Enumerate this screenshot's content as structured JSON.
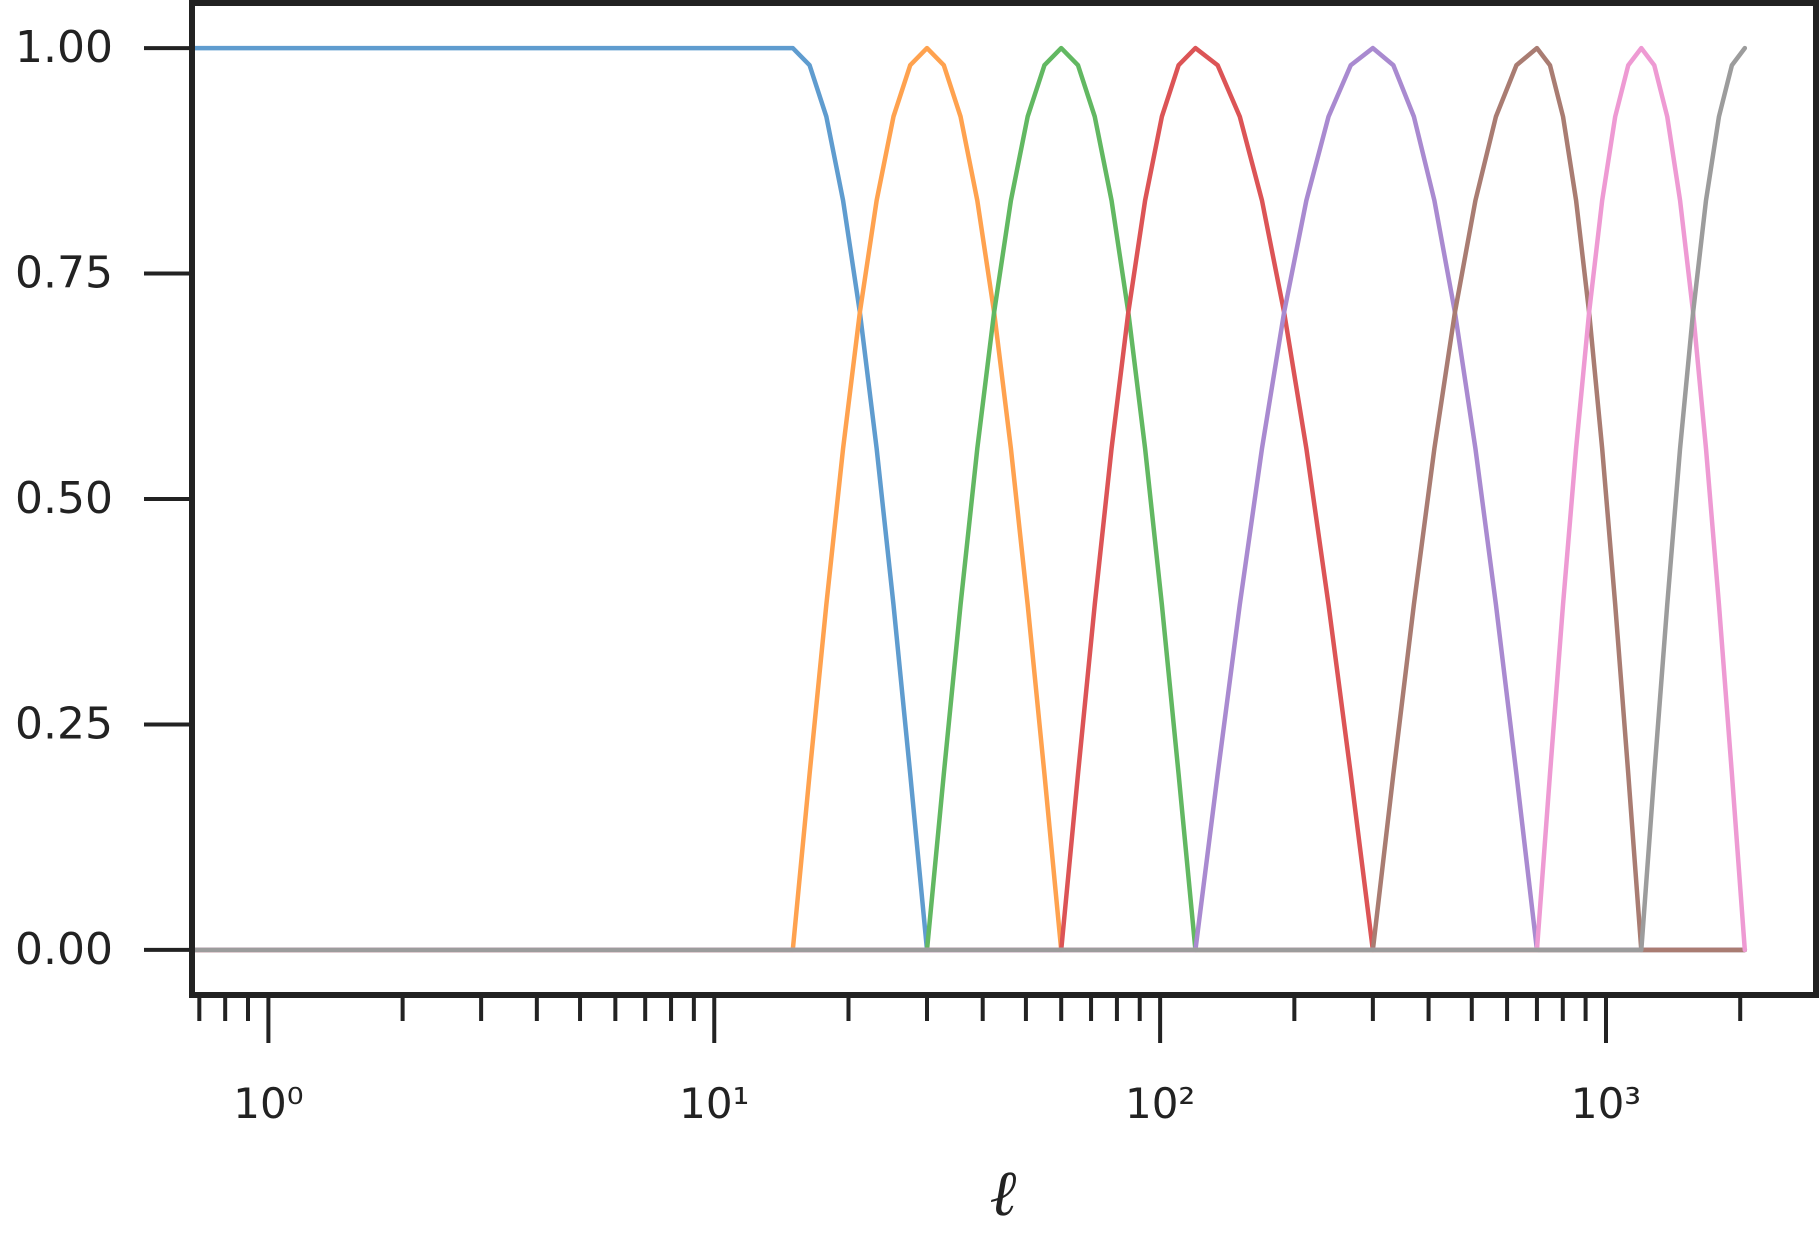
{
  "chart_data": {
    "type": "line",
    "x_label": "ℓ",
    "xscale": "log",
    "xlim": [
      0.674,
      2958
    ],
    "ylim": [
      -0.05,
      1.05
    ],
    "xticks": [
      {
        "value": 1,
        "label": "10⁰"
      },
      {
        "value": 10,
        "label": "10¹"
      },
      {
        "value": 100,
        "label": "10²"
      },
      {
        "value": 1000,
        "label": "10³"
      }
    ],
    "xminorticks": [
      0.7,
      0.8,
      0.9,
      2,
      3,
      4,
      5,
      6,
      7,
      8,
      9,
      20,
      30,
      40,
      50,
      60,
      70,
      80,
      90,
      200,
      300,
      400,
      500,
      600,
      700,
      800,
      900,
      2000
    ],
    "yticks": [
      {
        "value": 0,
        "label": "0.00"
      },
      {
        "value": 0.25,
        "label": "0.25"
      },
      {
        "value": 0.5,
        "label": "0.50"
      },
      {
        "value": 0.75,
        "label": "0.75"
      },
      {
        "value": 1,
        "label": "1.00"
      }
    ],
    "x": [
      0.68,
      15,
      16.36,
      17.84,
      19.45,
      21.21,
      23.13,
      25.23,
      27.51,
      30,
      32.72,
      35.68,
      38.9,
      42.43,
      46.27,
      50.45,
      55.02,
      60,
      65.43,
      71.35,
      77.81,
      84.85,
      92.53,
      100.9,
      110,
      120,
      134.6,
      150.9,
      169.2,
      189.7,
      212.8,
      238.6,
      267.6,
      300,
      333.5,
      370.8,
      412.2,
      458.3,
      509.5,
      566.4,
      629.6,
      700,
      748.8,
      801,
      856.9,
      916.5,
      980.4,
      1048.7,
      1121.9,
      1200,
      1283,
      1372,
      1466,
      1568,
      1676,
      1792,
      1916,
      2048
    ],
    "series": [
      {
        "color": "#5f9ccf",
        "values": [
          1,
          1,
          0.981,
          0.924,
          0.831,
          0.707,
          0.556,
          0.383,
          0.195,
          0,
          0,
          0,
          0,
          0,
          0,
          0,
          0,
          0,
          0,
          0,
          0,
          0,
          0,
          0,
          0,
          0,
          0,
          0,
          0,
          0,
          0,
          0,
          0,
          0,
          0,
          0,
          0,
          0,
          0,
          0,
          0,
          0,
          0,
          0,
          0,
          0,
          0,
          0,
          0,
          0,
          0,
          0,
          0,
          0,
          0,
          0,
          0,
          0
        ]
      },
      {
        "color": "#ffa24f",
        "values": [
          0,
          0,
          0.195,
          0.383,
          0.556,
          0.707,
          0.831,
          0.924,
          0.981,
          1,
          0.981,
          0.924,
          0.831,
          0.707,
          0.556,
          0.383,
          0.195,
          0,
          0,
          0,
          0,
          0,
          0,
          0,
          0,
          0,
          0,
          0,
          0,
          0,
          0,
          0,
          0,
          0,
          0,
          0,
          0,
          0,
          0,
          0,
          0,
          0,
          0,
          0,
          0,
          0,
          0,
          0,
          0,
          0,
          0,
          0,
          0,
          0,
          0,
          0,
          0,
          0
        ]
      },
      {
        "color": "#62b862",
        "values": [
          0,
          0,
          0,
          0,
          0,
          0,
          0,
          0,
          0,
          0,
          0.195,
          0.383,
          0.556,
          0.707,
          0.831,
          0.924,
          0.981,
          1,
          0.981,
          0.924,
          0.831,
          0.707,
          0.556,
          0.383,
          0.195,
          0,
          0,
          0,
          0,
          0,
          0,
          0,
          0,
          0,
          0,
          0,
          0,
          0,
          0,
          0,
          0,
          0,
          0,
          0,
          0,
          0,
          0,
          0,
          0,
          0,
          0,
          0,
          0,
          0,
          0,
          0,
          0,
          0
        ]
      },
      {
        "color": "#dc5456",
        "values": [
          0,
          0,
          0,
          0,
          0,
          0,
          0,
          0,
          0,
          0,
          0,
          0,
          0,
          0,
          0,
          0,
          0,
          0,
          0.195,
          0.383,
          0.556,
          0.707,
          0.831,
          0.924,
          0.981,
          1,
          0.981,
          0.924,
          0.831,
          0.707,
          0.556,
          0.383,
          0.195,
          0,
          0,
          0,
          0,
          0,
          0,
          0,
          0,
          0,
          0,
          0,
          0,
          0,
          0,
          0,
          0,
          0,
          0,
          0,
          0,
          0,
          0,
          0,
          0,
          0
        ]
      },
      {
        "color": "#a98ad0",
        "values": [
          0,
          0,
          0,
          0,
          0,
          0,
          0,
          0,
          0,
          0,
          0,
          0,
          0,
          0,
          0,
          0,
          0,
          0,
          0,
          0,
          0,
          0,
          0,
          0,
          0,
          0,
          0.195,
          0.383,
          0.556,
          0.707,
          0.831,
          0.924,
          0.981,
          1,
          0.981,
          0.924,
          0.831,
          0.707,
          0.556,
          0.383,
          0.195,
          0,
          0,
          0,
          0,
          0,
          0,
          0,
          0,
          0,
          0,
          0,
          0,
          0,
          0,
          0,
          0,
          0
        ]
      },
      {
        "color": "#a97c72",
        "values": [
          0,
          0,
          0,
          0,
          0,
          0,
          0,
          0,
          0,
          0,
          0,
          0,
          0,
          0,
          0,
          0,
          0,
          0,
          0,
          0,
          0,
          0,
          0,
          0,
          0,
          0,
          0,
          0,
          0,
          0,
          0,
          0,
          0,
          0,
          0.195,
          0.383,
          0.556,
          0.707,
          0.831,
          0.924,
          0.981,
          1,
          0.981,
          0.924,
          0.831,
          0.707,
          0.556,
          0.383,
          0.195,
          0,
          0,
          0,
          0,
          0,
          0,
          0,
          0,
          0
        ]
      },
      {
        "color": "#ee9ad3",
        "values": [
          0,
          0,
          0,
          0,
          0,
          0,
          0,
          0,
          0,
          0,
          0,
          0,
          0,
          0,
          0,
          0,
          0,
          0,
          0,
          0,
          0,
          0,
          0,
          0,
          0,
          0,
          0,
          0,
          0,
          0,
          0,
          0,
          0,
          0,
          0,
          0,
          0,
          0,
          0,
          0,
          0,
          0,
          0.195,
          0.383,
          0.556,
          0.707,
          0.831,
          0.924,
          0.981,
          1,
          0.981,
          0.924,
          0.831,
          0.707,
          0.556,
          0.383,
          0.195,
          0
        ]
      },
      {
        "color": "#9c9c9c",
        "values": [
          0,
          0,
          0,
          0,
          0,
          0,
          0,
          0,
          0,
          0,
          0,
          0,
          0,
          0,
          0,
          0,
          0,
          0,
          0,
          0,
          0,
          0,
          0,
          0,
          0,
          0,
          0,
          0,
          0,
          0,
          0,
          0,
          0,
          0,
          0,
          0,
          0,
          0,
          0,
          0,
          0,
          0,
          0,
          0,
          0,
          0,
          0,
          0,
          0,
          0,
          0.195,
          0.383,
          0.556,
          0.707,
          0.831,
          0.924,
          0.981,
          1
        ]
      }
    ]
  }
}
